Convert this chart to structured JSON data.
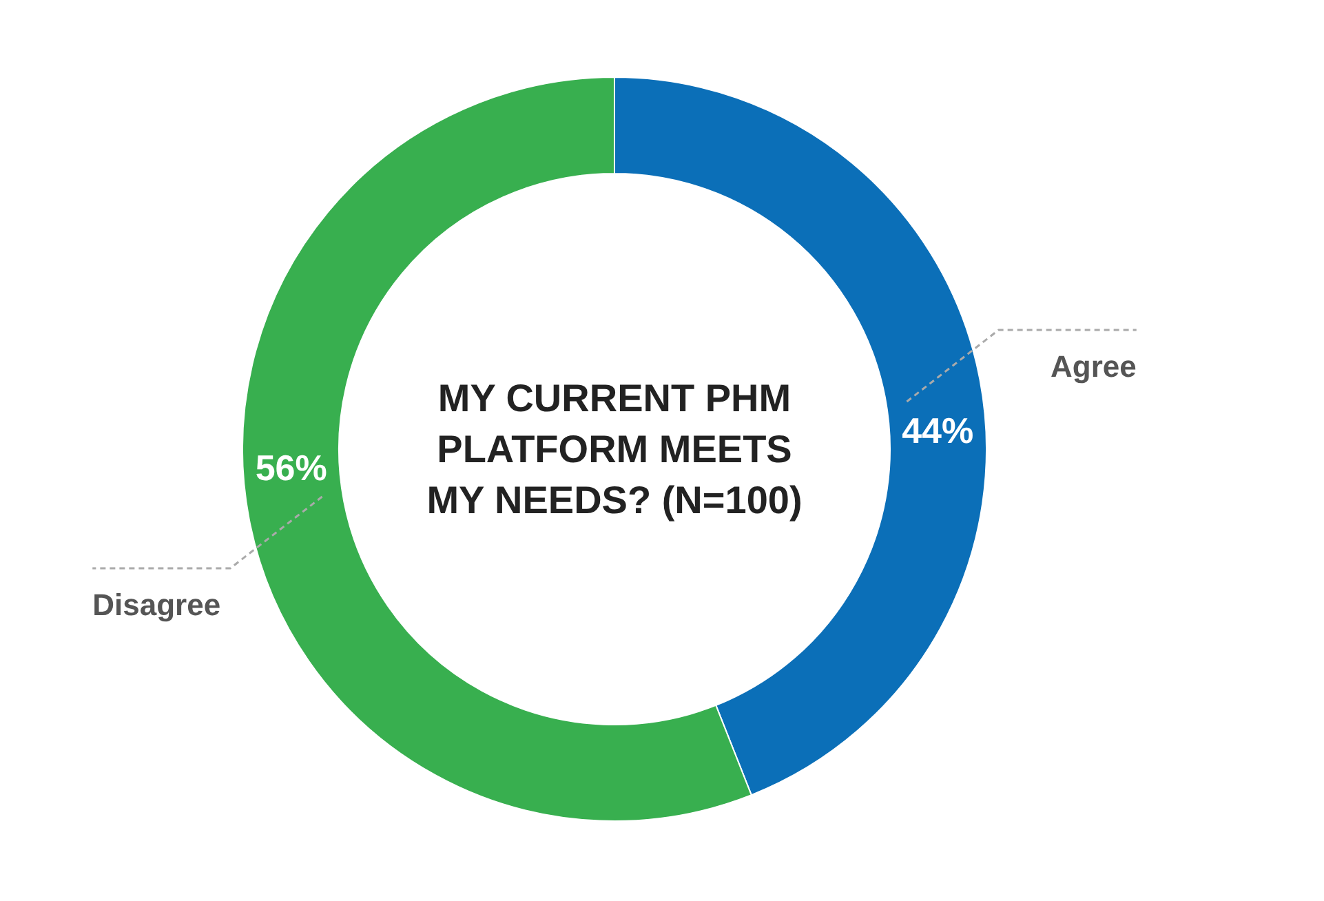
{
  "chart_data": {
    "type": "donut",
    "title": "MY CURRENT PHM PLATFORM MEETS MY NEEDS? (N=100)",
    "categories": [
      "Agree",
      "Disagree"
    ],
    "values": [
      44,
      56
    ],
    "colors": [
      "#0b6fb8",
      "#38af4f"
    ],
    "value_labels": [
      "44%",
      "56%"
    ]
  }
}
